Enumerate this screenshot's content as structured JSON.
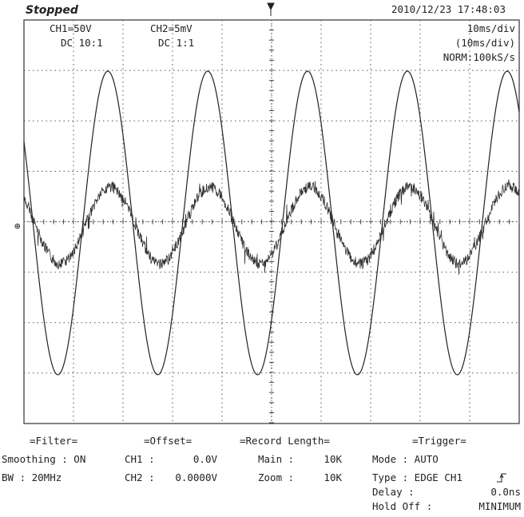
{
  "header": {
    "status": "Stopped",
    "timestamp": "2010/12/23  17:48:03"
  },
  "channels": [
    {
      "scale": "CH1=50V",
      "coupling": "DC  10:1"
    },
    {
      "scale": "CH2=5mV",
      "coupling": "DC  1:1"
    }
  ],
  "timebase": {
    "main": "10ms/div",
    "zoom": "(10ms/div)",
    "sampling": "NORM:100kS/s"
  },
  "footer": {
    "filter": {
      "title": "=Filter=",
      "smoothing": "Smoothing : ON",
      "bandwidth": "BW : 20MHz"
    },
    "offset": {
      "title": "=Offset=",
      "rows": [
        [
          "CH1 :",
          "0.0V"
        ],
        [
          "CH2 :",
          "0.0000V"
        ]
      ]
    },
    "record": {
      "title": "=Record Length=",
      "rows": [
        [
          "Main :",
          "10K"
        ],
        [
          "Zoom :",
          "10K"
        ]
      ]
    },
    "trigger": {
      "title": "=Trigger=",
      "mode": "Mode : AUTO",
      "type": "Type : EDGE CH1",
      "rows": [
        [
          "Delay :",
          "0.0ns"
        ],
        [
          "Hold Off :",
          "MINIMUM"
        ]
      ]
    }
  }
}
